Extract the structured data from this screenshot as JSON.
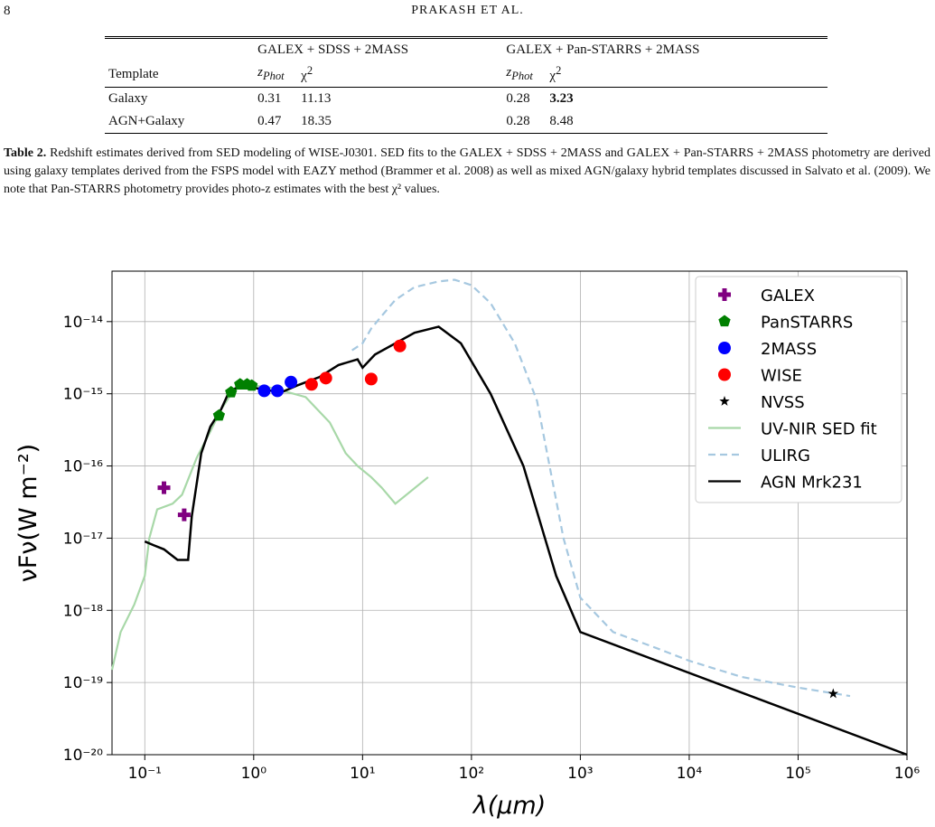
{
  "header": {
    "page_number": "8",
    "running_title": "PRAKASH ET AL."
  },
  "table": {
    "group_headers": [
      "GALEX + SDSS + 2MASS",
      "GALEX + Pan-STARRS + 2MASS"
    ],
    "columns": [
      {
        "text": "Template"
      },
      {
        "text": "z",
        "sub": "Phot"
      },
      {
        "text": "χ",
        "sup": "2"
      },
      {
        "text": "z",
        "sub": "Phot"
      },
      {
        "text": "χ",
        "sup": "2"
      }
    ],
    "rows": [
      [
        "Galaxy",
        "0.31",
        "11.13",
        "0.28",
        "3.23"
      ],
      [
        "AGN+Galaxy",
        "0.47",
        "18.35",
        "0.28",
        "8.48"
      ]
    ]
  },
  "caption": {
    "label": "Table 2.",
    "text": "Redshift estimates derived from SED modeling of WISE-J0301. SED fits to the GALEX + SDSS + 2MASS and GALEX + Pan-STARRS + 2MASS photometry are derived using galaxy templates derived from the FSPS model with EAZY method (Brammer et al. 2008) as well as mixed AGN/galaxy hybrid templates discussed in Salvato et al. (2009). We note that Pan-STARRS photometry provides photo-z estimates with the best χ² values."
  },
  "chart_data": {
    "type": "scatter",
    "x_label": "λ(μm)",
    "y_label": "νFν(W m⁻²)",
    "xscale": "log",
    "yscale": "log",
    "grid": true,
    "legend": "upper right",
    "xlim": [
      0.05,
      1000000
    ],
    "ylim": [
      1e-20,
      5e-14
    ],
    "xticks": [
      {
        "value": 0.1,
        "label": "10⁻¹"
      },
      {
        "value": 1,
        "label": "10⁰"
      },
      {
        "value": 10,
        "label": "10¹"
      },
      {
        "value": 100,
        "label": "10²"
      },
      {
        "value": 1000,
        "label": "10³"
      },
      {
        "value": 10000,
        "label": "10⁴"
      },
      {
        "value": 100000,
        "label": "10⁵"
      },
      {
        "value": 1000000,
        "label": "10⁶"
      }
    ],
    "yticks": [
      {
        "value": 1e-20,
        "label": "10⁻²⁰"
      },
      {
        "value": 1e-19,
        "label": "10⁻¹⁹"
      },
      {
        "value": 1e-18,
        "label": "10⁻¹⁸"
      },
      {
        "value": 1e-17,
        "label": "10⁻¹⁷"
      },
      {
        "value": 1e-16,
        "label": "10⁻¹⁶"
      },
      {
        "value": 1e-15,
        "label": "10⁻¹⁵"
      },
      {
        "value": 1e-14,
        "label": "10⁻¹⁴"
      }
    ],
    "series": [
      {
        "name": "GALEX",
        "color": "#800080",
        "marker": "plus",
        "x": [
          0.15,
          0.23
        ],
        "values": [
          5e-17,
          2.1e-17
        ]
      },
      {
        "name": "PanSTARRS",
        "color": "#008000",
        "marker": "pentagon",
        "x": [
          0.48,
          0.62,
          0.75,
          0.87,
          0.96
        ],
        "values": [
          5e-16,
          1.05e-15,
          1.35e-15,
          1.35e-15,
          1.3e-15
        ]
      },
      {
        "name": "2MASS",
        "color": "#0000ff",
        "marker": "circle",
        "x": [
          1.25,
          1.65,
          2.2
        ],
        "values": [
          1.1e-15,
          1.1e-15,
          1.45e-15
        ]
      },
      {
        "name": "WISE",
        "color": "#ff0000",
        "marker": "circle",
        "x": [
          3.4,
          4.6,
          12,
          22
        ],
        "values": [
          1.35e-15,
          1.65e-15,
          1.6e-15,
          4.6e-15
        ]
      },
      {
        "name": "NVSS",
        "color": "#000000",
        "marker": "star",
        "x": [
          210000
        ],
        "values": [
          7e-20
        ]
      },
      {
        "name": "UV-NIR SED fit",
        "color": "#a8d8a8",
        "line": "solid",
        "x": [
          0.05,
          0.06,
          0.08,
          0.1,
          0.11,
          0.13,
          0.18,
          0.22,
          0.3,
          0.4,
          0.5,
          0.7,
          1,
          1.5,
          3,
          5,
          7,
          9,
          12,
          15,
          20,
          40
        ],
        "values": [
          1.5e-19,
          5e-19,
          1.2e-18,
          3e-18,
          1e-17,
          2.5e-17,
          3e-17,
          4e-17,
          1.3e-16,
          3e-16,
          6e-16,
          1.3e-15,
          1.3e-15,
          1.2e-15,
          9e-16,
          4e-16,
          1.5e-16,
          1e-16,
          7e-17,
          5e-17,
          3e-17,
          7e-17
        ]
      },
      {
        "name": "ULIRG",
        "color": "#a6c8e0",
        "line": "dashed",
        "x": [
          8,
          10,
          12,
          15,
          20,
          30,
          50,
          70,
          100,
          150,
          250,
          400,
          700,
          1000,
          2000,
          5000,
          10000,
          30000,
          100000,
          300000
        ],
        "values": [
          4e-15,
          5e-15,
          8e-15,
          1.2e-14,
          2e-14,
          3e-14,
          3.6e-14,
          3.8e-14,
          3.2e-14,
          1.8e-14,
          5e-15,
          8e-16,
          1e-17,
          1.5e-18,
          5e-19,
          3e-19,
          2e-19,
          1.2e-19,
          8.5e-20,
          6.5e-20
        ]
      },
      {
        "name": "AGN Mrk231",
        "color": "#000000",
        "line": "solid",
        "x": [
          0.1,
          0.12,
          0.15,
          0.2,
          0.25,
          0.27,
          0.33,
          0.4,
          0.5,
          0.6,
          0.8,
          1.2,
          1.8,
          2.5,
          4,
          6,
          9,
          10,
          13,
          20,
          30,
          50,
          80,
          150,
          300,
          600,
          1000,
          1000000
        ],
        "values": [
          9e-18,
          8e-18,
          7e-18,
          5e-18,
          5e-18,
          2e-17,
          1.5e-16,
          3.5e-16,
          6e-16,
          1.1e-15,
          1.3e-15,
          1.15e-15,
          1.05e-15,
          1.3e-15,
          1.7e-15,
          2.5e-15,
          3e-15,
          2.3e-15,
          3.5e-15,
          5e-15,
          7e-15,
          8.5e-15,
          5e-15,
          1e-15,
          1e-16,
          3e-18,
          5e-19,
          1e-20
        ]
      }
    ]
  }
}
